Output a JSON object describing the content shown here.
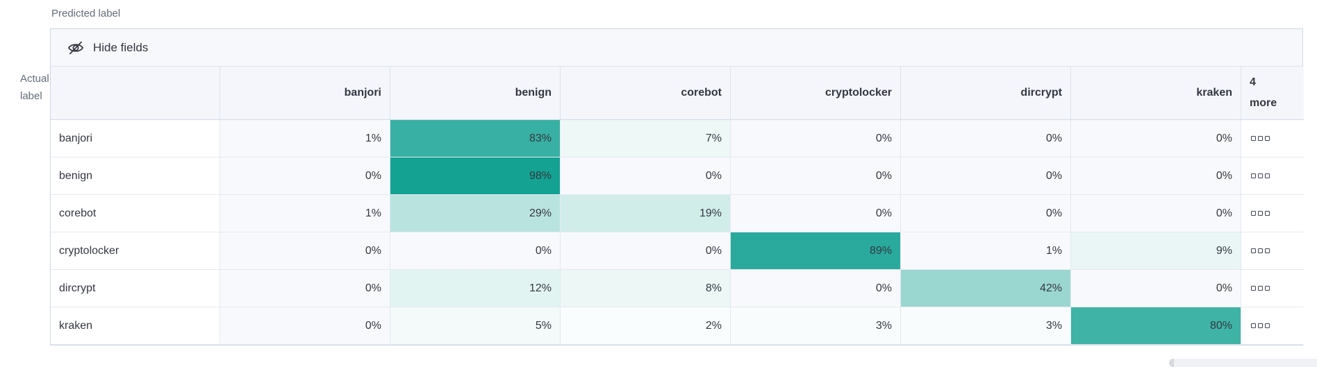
{
  "labels": {
    "predicted": "Predicted label",
    "actual": "Actual\nlabel"
  },
  "toolbar": {
    "hide_fields": "Hide fields"
  },
  "grid": {
    "columns": [
      "banjori",
      "benign",
      "corebot",
      "cryptolocker",
      "dircrypt",
      "kraken"
    ],
    "more_column_label": "4\nmore",
    "value_suffix": "%",
    "rows": [
      {
        "label": "banjori",
        "values": [
          1,
          83,
          7,
          0,
          0,
          0
        ]
      },
      {
        "label": "benign",
        "values": [
          0,
          98,
          0,
          0,
          0,
          0
        ]
      },
      {
        "label": "corebot",
        "values": [
          1,
          29,
          19,
          0,
          0,
          0
        ]
      },
      {
        "label": "cryptolocker",
        "values": [
          0,
          0,
          0,
          89,
          1,
          9
        ]
      },
      {
        "label": "dircrypt",
        "values": [
          0,
          12,
          8,
          0,
          42,
          0
        ]
      },
      {
        "label": "kraken",
        "values": [
          0,
          5,
          2,
          3,
          3,
          80
        ]
      }
    ]
  },
  "chart_data": {
    "type": "heatmap",
    "title": "Confusion matrix: Actual label vs Predicted label",
    "x_categories": [
      "banjori",
      "benign",
      "corebot",
      "cryptolocker",
      "dircrypt",
      "kraken"
    ],
    "y_categories": [
      "banjori",
      "benign",
      "corebot",
      "cryptolocker",
      "dircrypt",
      "kraken"
    ],
    "values_percent": [
      [
        1,
        83,
        7,
        0,
        0,
        0
      ],
      [
        0,
        98,
        0,
        0,
        0,
        0
      ],
      [
        1,
        29,
        19,
        0,
        0,
        0
      ],
      [
        0,
        0,
        0,
        89,
        1,
        9
      ],
      [
        0,
        12,
        8,
        0,
        42,
        0
      ],
      [
        0,
        5,
        2,
        3,
        3,
        80
      ]
    ],
    "hidden_columns_note": "4 more"
  },
  "colors": {
    "heat_base": "#0fa090",
    "zero_cell_bg": "#f8f9fc",
    "header_bg": "#f4f6fb",
    "toolbar_bg": "#f7f8fc",
    "outer_border": "#cfd7e2",
    "inner_border": "#e4e9f1",
    "text": "#343741",
    "subdued_text": "#646c79"
  }
}
